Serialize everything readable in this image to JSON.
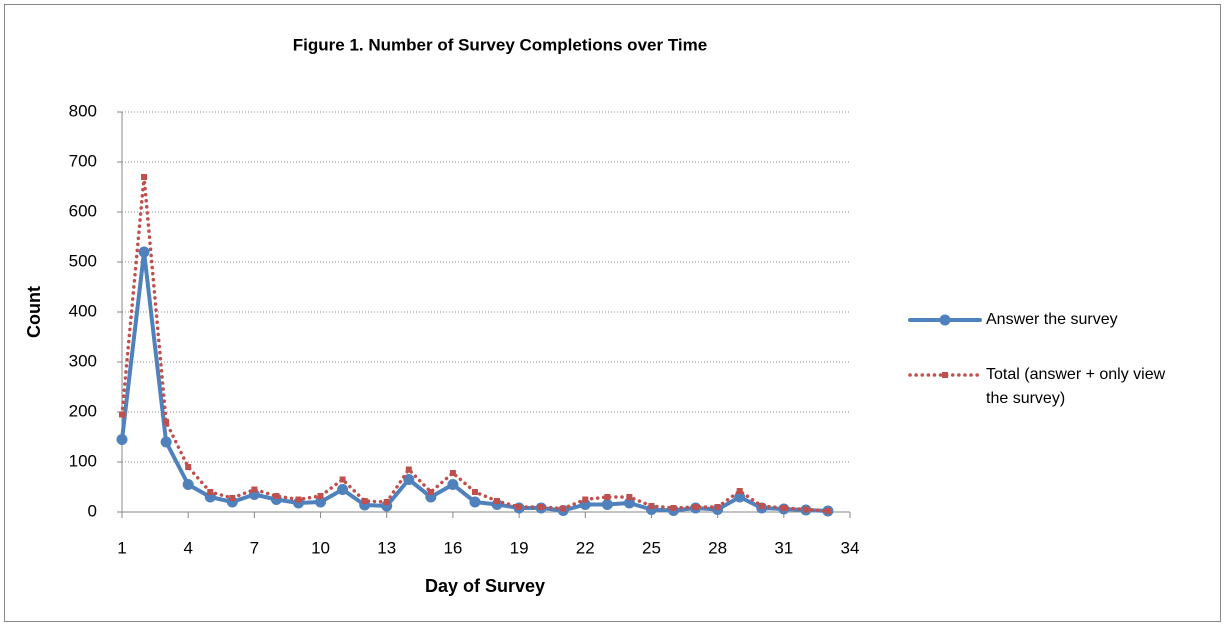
{
  "chart_data": {
    "type": "line",
    "title": "Figure 1. Number of Survey Completions over Time",
    "xlabel": "Day of Survey",
    "ylabel": "Count",
    "x": [
      1,
      2,
      3,
      4,
      5,
      6,
      7,
      8,
      9,
      10,
      11,
      12,
      13,
      14,
      15,
      16,
      17,
      18,
      19,
      20,
      21,
      22,
      23,
      24,
      25,
      26,
      27,
      28,
      29,
      30,
      31,
      32,
      33
    ],
    "series": [
      {
        "name": "Answer the survey",
        "color": "#4f81bd",
        "values": [
          145,
          520,
          140,
          55,
          30,
          20,
          35,
          25,
          18,
          20,
          45,
          14,
          12,
          65,
          30,
          55,
          20,
          15,
          8,
          8,
          3,
          15,
          15,
          18,
          5,
          3,
          8,
          5,
          30,
          8,
          6,
          4,
          2
        ]
      },
      {
        "name": "Total (answer + only view the survey)",
        "color": "#c0504d",
        "values": [
          195,
          670,
          180,
          90,
          40,
          28,
          45,
          32,
          25,
          32,
          65,
          22,
          20,
          85,
          40,
          78,
          40,
          22,
          10,
          10,
          7,
          25,
          30,
          30,
          12,
          8,
          10,
          10,
          42,
          12,
          8,
          5,
          2
        ]
      }
    ],
    "xlim": [
      1,
      34
    ],
    "xticks": [
      1,
      4,
      7,
      10,
      13,
      16,
      19,
      22,
      25,
      28,
      31,
      34
    ],
    "ylim": [
      0,
      800
    ],
    "yticks": [
      0,
      100,
      200,
      300,
      400,
      500,
      600,
      700,
      800
    ],
    "grid": true,
    "legend": "right"
  }
}
